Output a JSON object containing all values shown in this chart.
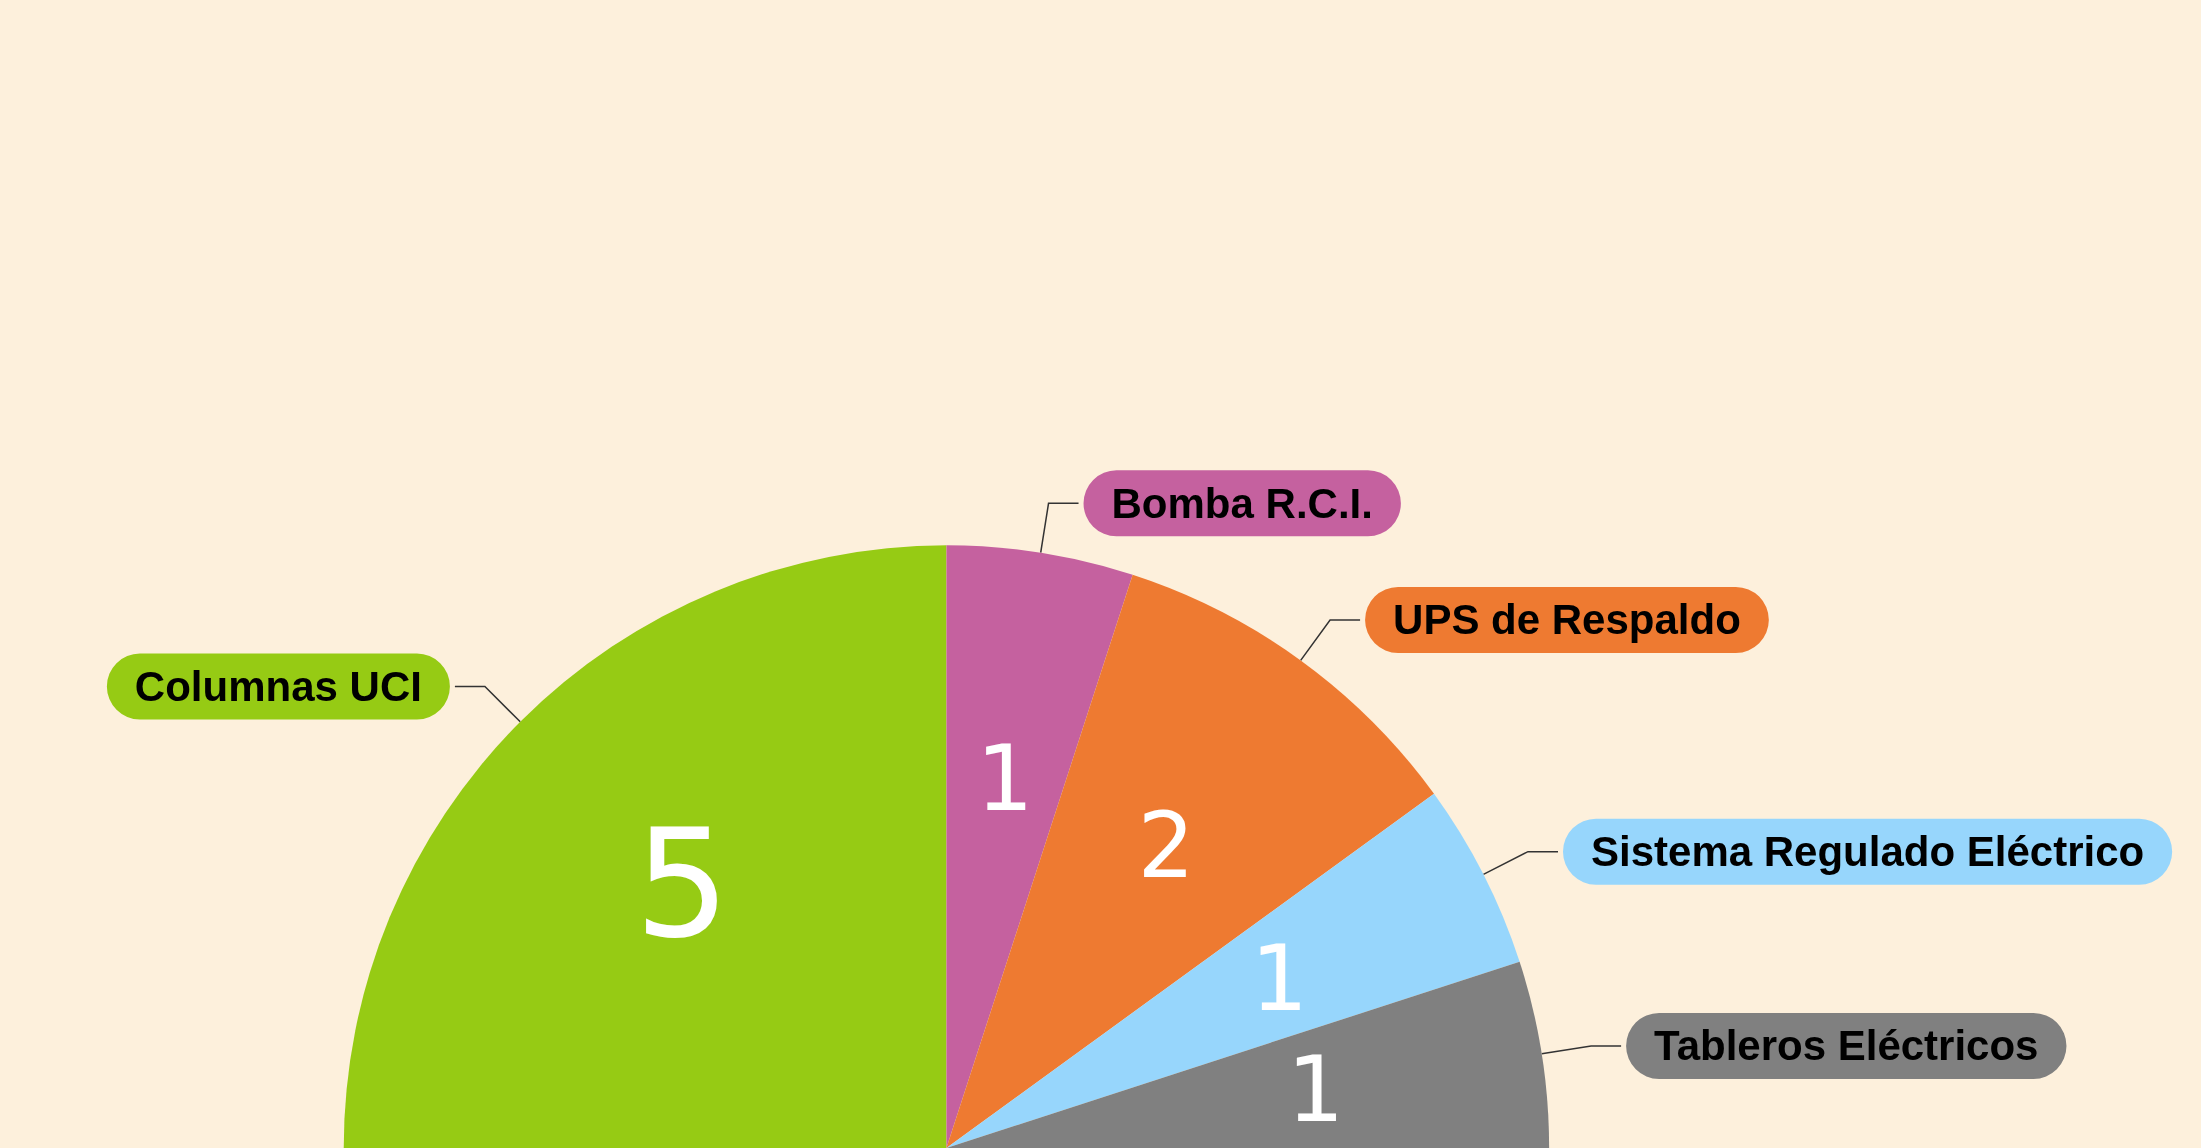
{
  "chart_data": {
    "type": "pie",
    "categories": [
      "Columnas UCI",
      "Bomba R.C.I.",
      "UPS de Respaldo",
      "Sistema Regulado Eléctrico",
      "Tableros Eléctricos"
    ],
    "values": [
      5,
      1,
      2,
      1,
      1
    ],
    "colors": [
      "#96cb14",
      "#c5619f",
      "#ee7a31",
      "#97d6fc",
      "#808080"
    ],
    "data_labels": true
  }
}
